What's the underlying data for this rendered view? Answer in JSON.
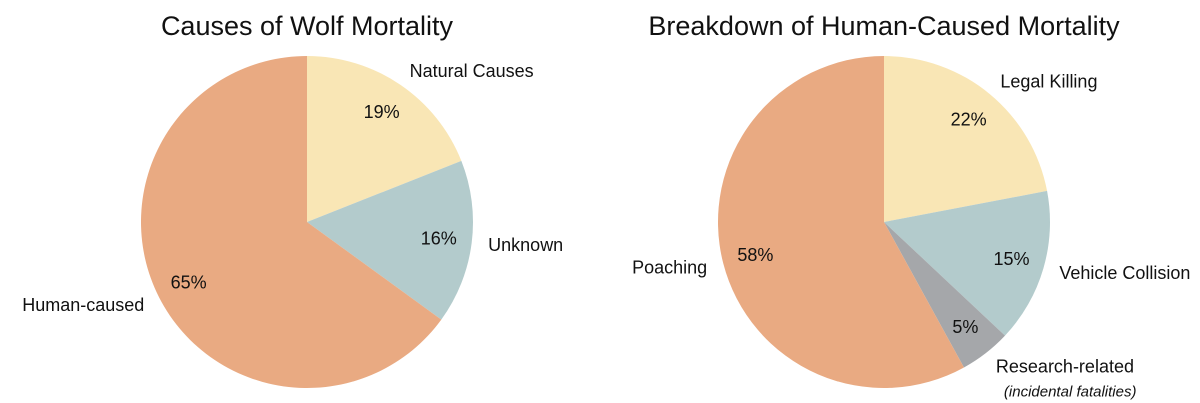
{
  "chart_data": [
    {
      "type": "pie",
      "title": "Causes of Wolf Mortality",
      "start_angle": "top, clockwise",
      "slices": [
        {
          "label": "Natural Causes",
          "value": 19,
          "pct_label": "19%",
          "color": "#F9E6B5"
        },
        {
          "label": "Unknown",
          "value": 16,
          "pct_label": "16%",
          "color": "#B3CBCC"
        },
        {
          "label": "Human-caused",
          "value": 65,
          "pct_label": "65%",
          "color": "#E9AA82"
        }
      ]
    },
    {
      "type": "pie",
      "title": "Breakdown of Human-Caused Mortality",
      "start_angle": "top, clockwise",
      "slices": [
        {
          "label": "Legal Killing",
          "value": 22,
          "pct_label": "22%",
          "color": "#F9E6B5"
        },
        {
          "label": "Vehicle Collision",
          "value": 15,
          "pct_label": "15%",
          "color": "#B3CBCC"
        },
        {
          "label": "Research-related",
          "sublabel": "(incidental fatalities)",
          "value": 5,
          "pct_label": "5%",
          "color": "#A5A7AA"
        },
        {
          "label": "Poaching",
          "value": 58,
          "pct_label": "58%",
          "color": "#E9AA82"
        }
      ]
    }
  ]
}
